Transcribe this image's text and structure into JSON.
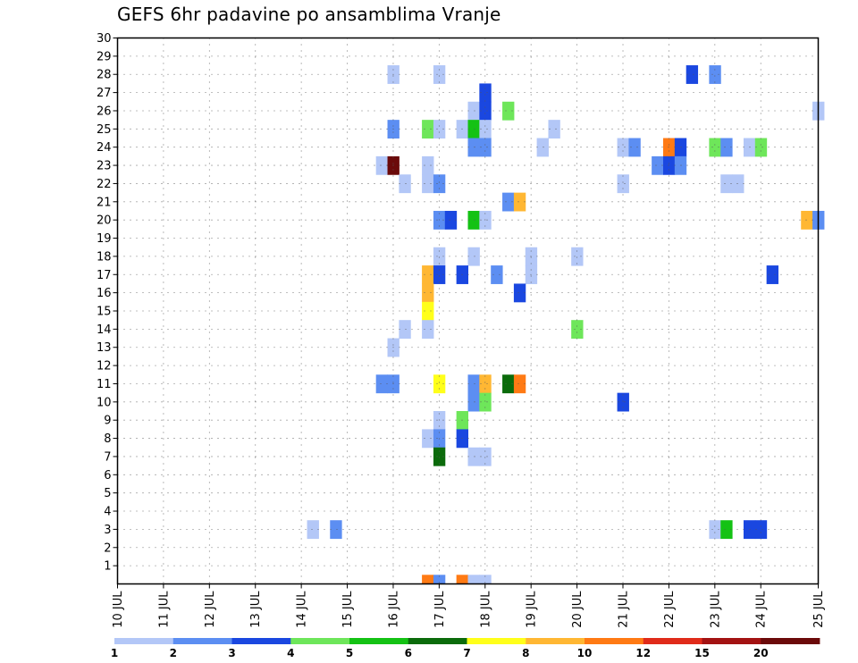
{
  "chart_data": {
    "type": "heatmap",
    "title": "GEFS 6hr padavine po ansamblima Vranje",
    "xlabel": "",
    "ylabel": "",
    "x_range": [
      0,
      61
    ],
    "y_range": [
      0,
      30
    ],
    "x_ticks": [
      {
        "i": 0,
        "label": "10 JUL"
      },
      {
        "i": 4,
        "label": "11 JUL"
      },
      {
        "i": 8,
        "label": "12 JUL"
      },
      {
        "i": 12,
        "label": "13 JUL"
      },
      {
        "i": 16,
        "label": "14 JUL"
      },
      {
        "i": 20,
        "label": "15 JUL"
      },
      {
        "i": 24,
        "label": "16 JUL"
      },
      {
        "i": 28,
        "label": "17 JUL"
      },
      {
        "i": 32,
        "label": "18 JUL"
      },
      {
        "i": 36,
        "label": "19 JUL"
      },
      {
        "i": 40,
        "label": "20 JUL"
      },
      {
        "i": 44,
        "label": "21 JUL"
      },
      {
        "i": 48,
        "label": "22 JUL"
      },
      {
        "i": 52,
        "label": "23 JUL"
      },
      {
        "i": 56,
        "label": "24 JUL"
      },
      {
        "i": 61,
        "label": "25 JUL"
      }
    ],
    "y_ticks": [
      1,
      2,
      3,
      4,
      5,
      6,
      7,
      8,
      9,
      10,
      11,
      12,
      13,
      14,
      15,
      16,
      17,
      18,
      19,
      20,
      21,
      22,
      23,
      24,
      25,
      26,
      27,
      28,
      29,
      30
    ],
    "grid": true,
    "colorbar": {
      "colors": [
        "#b3c7f7",
        "#5c8ef2",
        "#1a47e0",
        "#6ee65a",
        "#14c214",
        "#0b6b0b",
        "#ffff1a",
        "#ffb733",
        "#ff7a14",
        "#e02b1a",
        "#a31212",
        "#6b0a0a"
      ],
      "labels": [
        "1",
        "2",
        "3",
        "4",
        "5",
        "6",
        "7",
        "8",
        "10",
        "12",
        "15",
        "20"
      ]
    },
    "cells": [
      {
        "x": 24,
        "y": 28,
        "v": 1.5
      },
      {
        "x": 28,
        "y": 28,
        "v": 1.5
      },
      {
        "x": 50,
        "y": 28,
        "v": 3
      },
      {
        "x": 52,
        "y": 28,
        "v": 2
      },
      {
        "x": 32,
        "y": 27,
        "v": 3
      },
      {
        "x": 31,
        "y": 26,
        "v": 1.5
      },
      {
        "x": 32,
        "y": 26,
        "v": 3
      },
      {
        "x": 34,
        "y": 26,
        "v": 4.5
      },
      {
        "x": 61,
        "y": 26,
        "v": 1.5
      },
      {
        "x": 24,
        "y": 25,
        "v": 2
      },
      {
        "x": 27,
        "y": 25,
        "v": 4.5
      },
      {
        "x": 28,
        "y": 25,
        "v": 1.5
      },
      {
        "x": 30,
        "y": 25,
        "v": 1.5
      },
      {
        "x": 31,
        "y": 25,
        "v": 5
      },
      {
        "x": 32,
        "y": 25,
        "v": 1.5
      },
      {
        "x": 38,
        "y": 25,
        "v": 1.5
      },
      {
        "x": 31,
        "y": 24,
        "v": 2
      },
      {
        "x": 32,
        "y": 24,
        "v": 2
      },
      {
        "x": 37,
        "y": 24,
        "v": 1.5
      },
      {
        "x": 44,
        "y": 24,
        "v": 1.5
      },
      {
        "x": 45,
        "y": 24,
        "v": 2
      },
      {
        "x": 48,
        "y": 24,
        "v": 11
      },
      {
        "x": 49,
        "y": 24,
        "v": 3
      },
      {
        "x": 52,
        "y": 24,
        "v": 4.5
      },
      {
        "x": 53,
        "y": 24,
        "v": 2
      },
      {
        "x": 55,
        "y": 24,
        "v": 1.5
      },
      {
        "x": 56,
        "y": 24,
        "v": 4.5
      },
      {
        "x": 23,
        "y": 23,
        "v": 1.5
      },
      {
        "x": 24,
        "y": 23,
        "v": 21
      },
      {
        "x": 27,
        "y": 23,
        "v": 1.5
      },
      {
        "x": 47,
        "y": 23,
        "v": 2
      },
      {
        "x": 48,
        "y": 23,
        "v": 3
      },
      {
        "x": 49,
        "y": 23,
        "v": 2
      },
      {
        "x": 25,
        "y": 22,
        "v": 1.5
      },
      {
        "x": 27,
        "y": 22,
        "v": 1.5
      },
      {
        "x": 28,
        "y": 22,
        "v": 2
      },
      {
        "x": 44,
        "y": 22,
        "v": 1.5
      },
      {
        "x": 53,
        "y": 22,
        "v": 1.5
      },
      {
        "x": 54,
        "y": 22,
        "v": 1.5
      },
      {
        "x": 34,
        "y": 21,
        "v": 2
      },
      {
        "x": 35,
        "y": 21,
        "v": 9
      },
      {
        "x": 28,
        "y": 20,
        "v": 2
      },
      {
        "x": 29,
        "y": 20,
        "v": 3
      },
      {
        "x": 31,
        "y": 20,
        "v": 5
      },
      {
        "x": 32,
        "y": 20,
        "v": 1.5
      },
      {
        "x": 60,
        "y": 20,
        "v": 9
      },
      {
        "x": 61,
        "y": 20,
        "v": 2
      },
      {
        "x": 28,
        "y": 18,
        "v": 1.5
      },
      {
        "x": 31,
        "y": 18,
        "v": 1.5
      },
      {
        "x": 36,
        "y": 18,
        "v": 1.5
      },
      {
        "x": 40,
        "y": 18,
        "v": 1.5
      },
      {
        "x": 27,
        "y": 17,
        "v": 9
      },
      {
        "x": 28,
        "y": 17,
        "v": 3
      },
      {
        "x": 30,
        "y": 17,
        "v": 3
      },
      {
        "x": 33,
        "y": 17,
        "v": 2
      },
      {
        "x": 36,
        "y": 17,
        "v": 1.5
      },
      {
        "x": 57,
        "y": 17,
        "v": 3
      },
      {
        "x": 27,
        "y": 16,
        "v": 9
      },
      {
        "x": 35,
        "y": 16,
        "v": 3
      },
      {
        "x": 27,
        "y": 15,
        "v": 7.5
      },
      {
        "x": 25,
        "y": 14,
        "v": 1.5
      },
      {
        "x": 27,
        "y": 14,
        "v": 1.5
      },
      {
        "x": 40,
        "y": 14,
        "v": 4.5
      },
      {
        "x": 24,
        "y": 13,
        "v": 1.5
      },
      {
        "x": 23,
        "y": 11,
        "v": 2
      },
      {
        "x": 24,
        "y": 11,
        "v": 2
      },
      {
        "x": 28,
        "y": 11,
        "v": 7.5
      },
      {
        "x": 31,
        "y": 11,
        "v": 2
      },
      {
        "x": 32,
        "y": 11,
        "v": 9
      },
      {
        "x": 34,
        "y": 11,
        "v": 6.5
      },
      {
        "x": 35,
        "y": 11,
        "v": 11
      },
      {
        "x": 31,
        "y": 10,
        "v": 2
      },
      {
        "x": 32,
        "y": 10,
        "v": 4.5
      },
      {
        "x": 44,
        "y": 10,
        "v": 3
      },
      {
        "x": 28,
        "y": 9,
        "v": 1.5
      },
      {
        "x": 30,
        "y": 9,
        "v": 4.5
      },
      {
        "x": 27,
        "y": 8,
        "v": 1.5
      },
      {
        "x": 28,
        "y": 8,
        "v": 2
      },
      {
        "x": 30,
        "y": 8,
        "v": 3
      },
      {
        "x": 28,
        "y": 7,
        "v": 6.5
      },
      {
        "x": 31,
        "y": 7,
        "v": 1.5
      },
      {
        "x": 32,
        "y": 7,
        "v": 1.5
      },
      {
        "x": 17,
        "y": 3,
        "v": 1.5
      },
      {
        "x": 19,
        "y": 3,
        "v": 2
      },
      {
        "x": 52,
        "y": 3,
        "v": 1.5
      },
      {
        "x": 53,
        "y": 3,
        "v": 5
      },
      {
        "x": 55,
        "y": 3,
        "v": 3
      },
      {
        "x": 56,
        "y": 3,
        "v": 3
      },
      {
        "x": 27,
        "y": 0,
        "v": 11
      },
      {
        "x": 28,
        "y": 0,
        "v": 2
      },
      {
        "x": 30,
        "y": 0,
        "v": 11
      },
      {
        "x": 31,
        "y": 0,
        "v": 1.5
      },
      {
        "x": 32,
        "y": 0,
        "v": 1.5
      }
    ]
  }
}
